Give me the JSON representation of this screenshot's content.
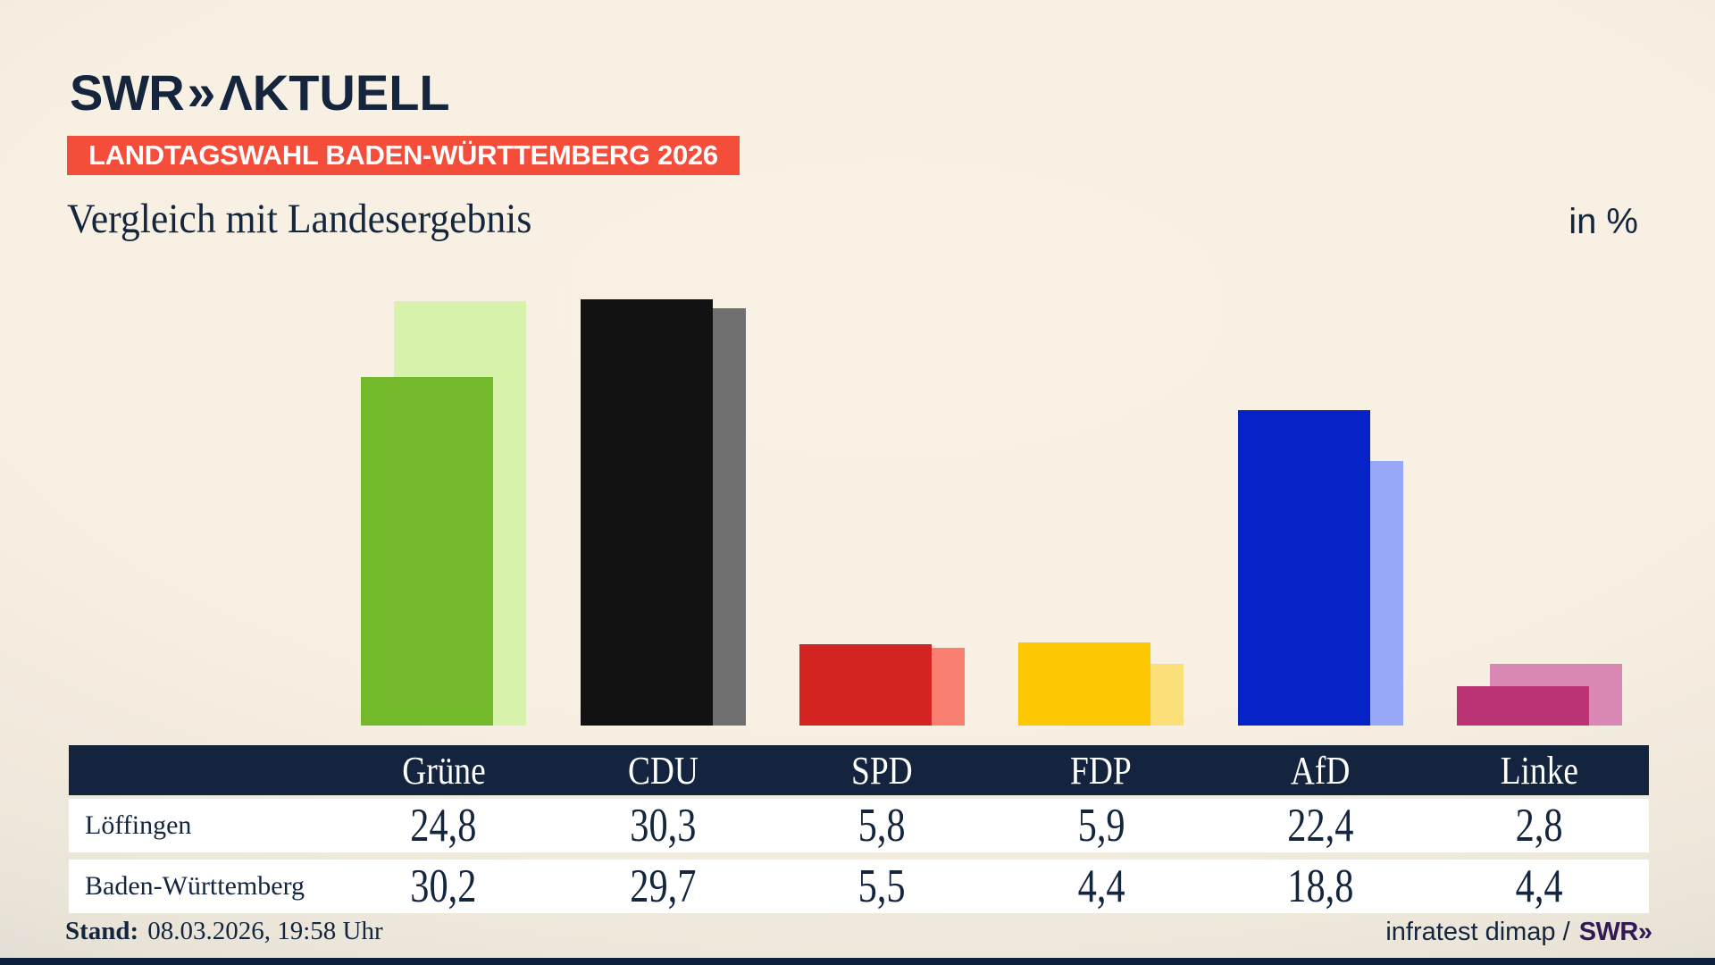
{
  "logo": {
    "brand": "SWR",
    "chevrons": "»",
    "product": "ΛKTUELL"
  },
  "banner": {
    "text": "LANDTAGSWAHL BADEN-WÜRTTEMBERG 2026",
    "background": "#f44d3a"
  },
  "title": "Vergleich mit Landesergebnis",
  "unit": "in %",
  "chart_data": {
    "type": "bar",
    "title": "Vergleich mit Landesergebnis",
    "unit": "in %",
    "categories": [
      "Grüne",
      "CDU",
      "SPD",
      "FDP",
      "AfD",
      "Linke"
    ],
    "series": [
      {
        "name": "Löffingen",
        "values": [
          24.8,
          30.3,
          5.8,
          5.9,
          22.4,
          2.8
        ]
      },
      {
        "name": "Baden-Württemberg",
        "values": [
          30.2,
          29.7,
          5.5,
          4.4,
          18.8,
          4.4
        ]
      }
    ],
    "colors": {
      "main": [
        "#74b82c",
        "#121212",
        "#d42421",
        "#fdc703",
        "#0623c8",
        "#bb3375"
      ],
      "compare": [
        "#d7f2aa",
        "#6f6f6f",
        "#f97f71",
        "#fbdf79",
        "#98a8f8",
        "#d988b4"
      ]
    },
    "ylim": [
      0,
      31
    ],
    "grid": false,
    "legend_position": "table-below"
  },
  "table": {
    "header_bg": "#14243e",
    "header": [
      "Grüne",
      "CDU",
      "SPD",
      "FDP",
      "AfD",
      "Linke"
    ],
    "rows": [
      {
        "label": "Löffingen",
        "values": [
          "24,8",
          "30,3",
          "5,8",
          "5,9",
          "22,4",
          "2,8"
        ]
      },
      {
        "label": "Baden-Württemberg",
        "values": [
          "30,2",
          "29,7",
          "5,5",
          "4,4",
          "18,8",
          "4,4"
        ]
      }
    ]
  },
  "footer": {
    "stand_label": "Stand:",
    "stand_value": "08.03.2026, 19:58 Uhr",
    "source_text": "infratest dimap /",
    "source_brand": "SWR",
    "source_chevrons": "»"
  }
}
